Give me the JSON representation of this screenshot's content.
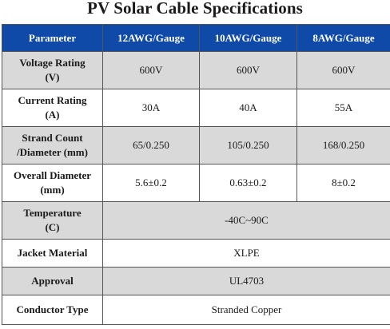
{
  "title": "PV Solar Cable Specifications",
  "headers": [
    "Parameter",
    "12AWG/Gauge",
    "10AWG/Gauge",
    "8AWG/Gauge"
  ],
  "rows": [
    {
      "param_line1": "Voltage Rating",
      "param_line2": "(V)",
      "values": [
        "600V",
        "600V",
        "600V"
      ]
    },
    {
      "param_line1": "Current Rating",
      "param_line2": "(A)",
      "values": [
        "30A",
        "40A",
        "55A"
      ]
    },
    {
      "param_line1": "Strand Count",
      "param_line2": "/Diameter (mm)",
      "values": [
        "65/0.250",
        "105/0.250",
        "168/0.250"
      ]
    },
    {
      "param_line1": "Overall Diameter",
      "param_line2": "(mm)",
      "values": [
        "5.6±0.2",
        "0.63±0.2",
        "8±0.2"
      ]
    },
    {
      "param_line1": "Temperature",
      "param_line2": "(C)",
      "merged": "-40C~90C"
    },
    {
      "param_line1": "Jacket Material",
      "merged": "XLPE"
    },
    {
      "param_line1": "Approval",
      "merged": "UL4703"
    },
    {
      "param_line1": "Conductor Type",
      "merged": "Stranded Copper"
    }
  ]
}
